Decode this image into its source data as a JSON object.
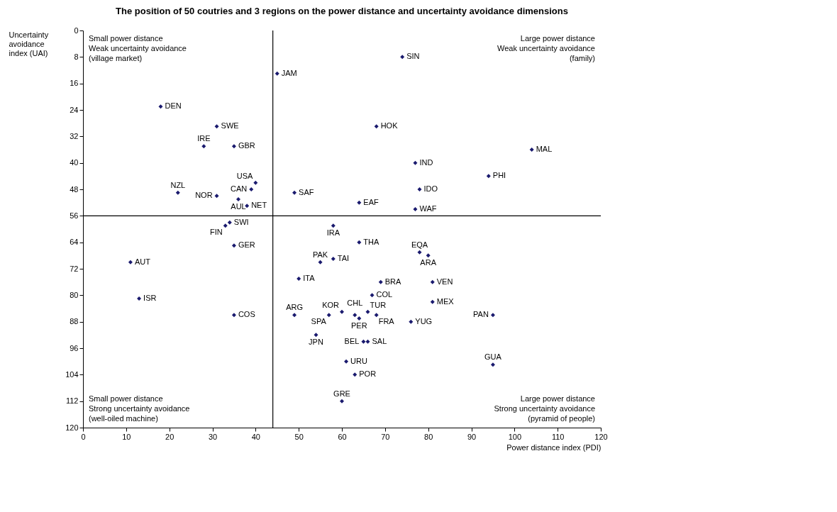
{
  "chart_data": {
    "type": "scatter",
    "title": "The position of 50 coutries and 3 regions on the power distance and uncertainty avoidance dimensions",
    "xlabel": "Power distance index (PDI)",
    "ylabel": "Uncertainty avoidance index (UAI)",
    "xlim": [
      0,
      120
    ],
    "ylim": [
      120,
      0
    ],
    "xticks": [
      0,
      10,
      20,
      30,
      40,
      50,
      60,
      70,
      80,
      90,
      100,
      110,
      120
    ],
    "yticks": [
      0,
      8,
      16,
      24,
      32,
      40,
      48,
      56,
      64,
      72,
      80,
      88,
      96,
      104,
      112,
      120
    ],
    "marker": "diamond",
    "series": [
      {
        "color": "#1a1a6e",
        "x": [
          18,
          31,
          28,
          35,
          22,
          31,
          40,
          39,
          36,
          38,
          49,
          45,
          74,
          68,
          77,
          78,
          104,
          94,
          64,
          77,
          34,
          33,
          35,
          11,
          13,
          58,
          64,
          55,
          58,
          78,
          80,
          50,
          69,
          81,
          67,
          81,
          63,
          66,
          60,
          57,
          49,
          64,
          68,
          76,
          95,
          35,
          54,
          65,
          66,
          61,
          63,
          60,
          95
        ],
        "values": [
          23,
          29,
          35,
          35,
          49,
          50,
          46,
          48,
          51,
          53,
          49,
          13,
          8,
          29,
          40,
          48,
          36,
          44,
          52,
          54,
          58,
          59,
          65,
          70,
          81,
          59,
          64,
          70,
          69,
          67,
          68,
          75,
          76,
          76,
          80,
          82,
          86,
          85,
          85,
          86,
          86,
          87,
          86,
          88,
          86,
          86,
          92,
          94,
          94,
          100,
          104,
          112,
          101
        ],
        "value_labels": [
          "DEN",
          "SWE",
          "IRE",
          "GBR",
          "NZL",
          "NOR",
          "USA",
          "CAN",
          "AUL",
          "NET",
          "SAF",
          "JAM",
          "SIN",
          "HOK",
          "IND",
          "IDO",
          "MAL",
          "PHI",
          "EAF",
          "WAF",
          "SWI",
          "FIN",
          "GER",
          "AUT",
          "ISR",
          "IRA",
          "THA",
          "PAK",
          "TAI",
          "EQA",
          "ARA",
          "ITA",
          "BRA",
          "VEN",
          "COL",
          "MEX",
          "CHL",
          "TUR",
          "KOR",
          "SPA",
          "ARG",
          "PER",
          "FRA",
          "YUG",
          "PAN",
          "COS",
          "JPN",
          "BEL",
          "SAL",
          "URU",
          "POR",
          "GRE",
          "GUA"
        ]
      }
    ],
    "ref_lines": [
      {
        "axis": "x",
        "value": 44
      },
      {
        "axis": "y",
        "value": 56
      }
    ],
    "annotations": [
      "Small power distance\nWeak uncertainty avoidance\n(village market)",
      "Large power distance\nWeak uncertainty avoidance\n(family)",
      "Small power distance\nStrong uncertainty avoidance\n(well-oiled machine)",
      "Large power distance\nStrong uncertainty avoidance\n(pyramid of people)"
    ]
  }
}
